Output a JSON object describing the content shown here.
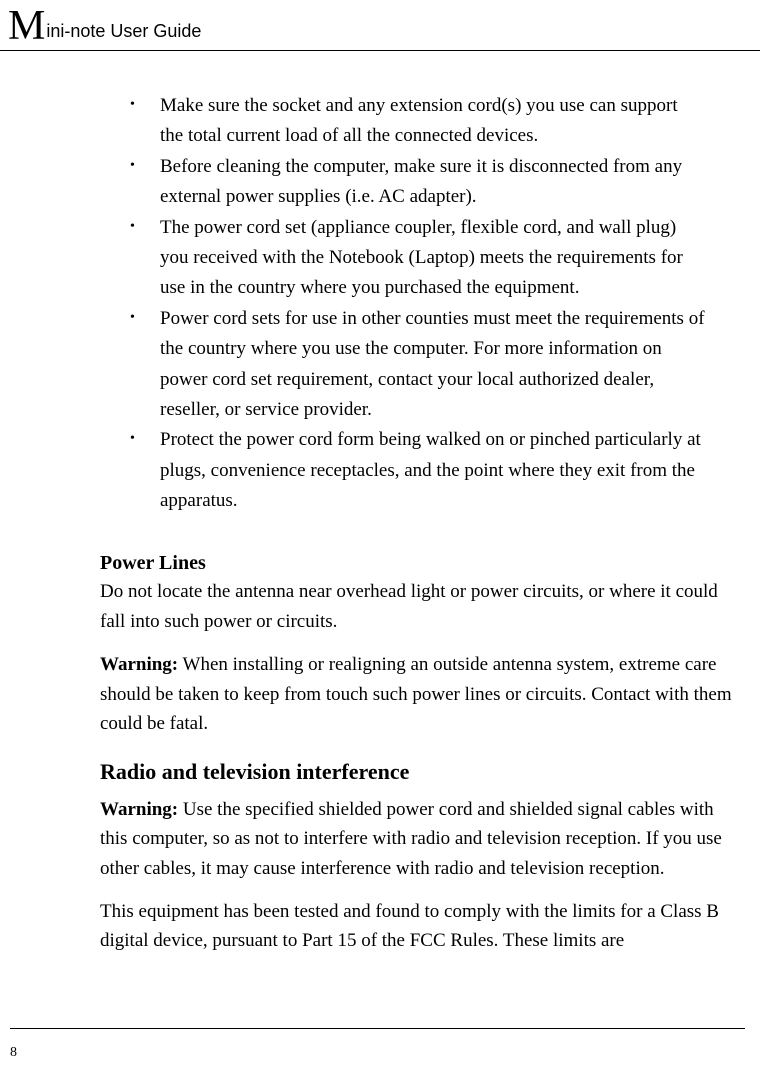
{
  "header": {
    "first_letter": "M",
    "rest": "ini-note User Guide"
  },
  "bullets": [
    "Make sure the socket and any extension cord(s) you use can support the total current load of all the connected devices.",
    "Before cleaning the computer, make sure it is disconnected from any external power supplies (i.e. AC adapter).",
    "The power cord set (appliance coupler, flexible cord, and wall plug) you received with the Notebook (Laptop) meets the requirements for use in the country where you purchased the equipment.",
    "Power cord sets for use in other counties must meet the requirements of the country where you use the computer. For more information on power cord set requirement, contact your local authorized dealer, reseller, or service provider.",
    "Protect the power cord form being walked on or pinched particularly at plugs, convenience receptacles, and the point where they exit from the apparatus."
  ],
  "sections": {
    "power_lines": {
      "heading": "Power Lines",
      "text": "Do not locate the antenna near overhead light or power circuits, or where it could fall into such power or circuits.",
      "warning_label": "Warning:",
      "warning_text": " When installing or realigning an outside antenna system, extreme care should be taken to keep from touch such power lines or circuits. Contact with them could be fatal."
    },
    "radio_tv": {
      "heading": "Radio and television interference",
      "warning_label": "Warning:",
      "warning_text": " Use the specified shielded power cord and shielded signal cables with this computer, so as not to interfere with radio and television reception. If you use other cables, it may cause interference with radio and television reception.",
      "body": "This equipment has been tested and found to comply with the limits for a Class B digital device, pursuant to Part 15 of the FCC Rules. These limits are"
    }
  },
  "page_number": "8"
}
